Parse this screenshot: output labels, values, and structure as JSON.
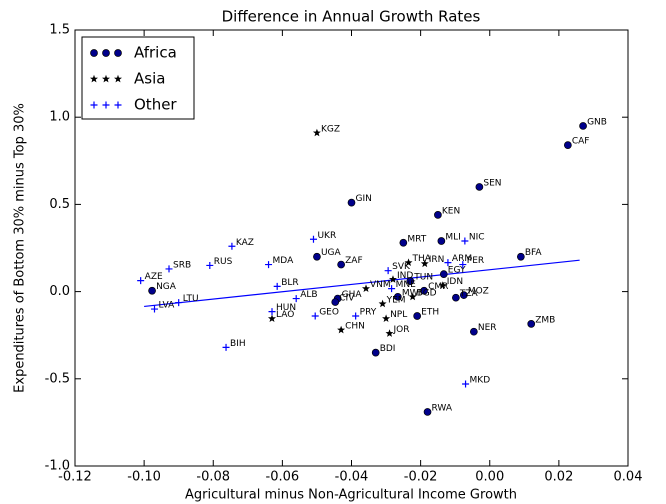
{
  "chart_data": {
    "type": "scatter",
    "title": "Difference in Annual Growth Rates",
    "x_label": "Agricultural minus Non-Agricultural Income Growth",
    "y_label": "Expenditures of Bottom 30% minus Top 30%",
    "xlim": [
      -0.12,
      0.04
    ],
    "ylim": [
      -1.0,
      1.5
    ],
    "xticks": [
      -0.12,
      {
        "value": -0.1,
        "label": "-0.10"
      },
      -0.08,
      -0.06,
      -0.04,
      -0.02,
      {
        "value": 0,
        "label": "0.00"
      },
      0.02,
      0.04
    ],
    "yticks": [
      {
        "value": -1.0,
        "label": "-1.0"
      },
      -0.5,
      {
        "value": 0,
        "label": "0.0"
      },
      0.5,
      {
        "value": 1.0,
        "label": "1.0"
      },
      1.5
    ],
    "legend": "upper left",
    "series": [
      {
        "name": "Africa",
        "color": "#00008b",
        "marker": "circle",
        "labels": [
          "GNB",
          "CAF",
          "SEN",
          "GIN",
          "KEN",
          "MRT",
          "MLI",
          "UGA",
          "ZAF",
          "BFA",
          "TUN",
          "CMR",
          "MOZ",
          "NGA",
          "ETH",
          "NER",
          "ZMB",
          "BDI",
          "RWA",
          "GHA",
          "CIV",
          "MWI",
          "TZA",
          "EGY"
        ],
        "x": [
          0.027,
          0.0226,
          -0.003,
          -0.04,
          -0.015,
          -0.025,
          -0.014,
          -0.05,
          -0.043,
          0.009,
          -0.023,
          -0.019,
          -0.0075,
          -0.0977,
          -0.021,
          -0.0046,
          0.012,
          -0.033,
          -0.018,
          -0.044,
          -0.0447,
          -0.0266,
          -0.0098,
          -0.0133
        ],
        "y": [
          0.95,
          0.84,
          0.6,
          0.51,
          0.44,
          0.28,
          0.29,
          0.2,
          0.155,
          0.2,
          0.06,
          0.005,
          -0.02,
          0.005,
          -0.14,
          -0.23,
          -0.185,
          -0.35,
          -0.69,
          -0.04,
          -0.06,
          -0.03,
          -0.035,
          0.1
        ]
      },
      {
        "name": "Asia",
        "color": "#000000",
        "marker": "star",
        "labels": [
          "KGZ",
          "THA",
          "IRN",
          "IND",
          "VNM",
          "JOR",
          "LAO",
          "CHN",
          "NPL",
          "YEM",
          "IDN",
          "BGD"
        ],
        "x": [
          -0.05,
          -0.0235,
          -0.0188,
          -0.028,
          -0.0358,
          -0.029,
          -0.063,
          -0.043,
          -0.03,
          -0.031,
          -0.0136,
          -0.0223
        ],
        "y": [
          0.91,
          0.166,
          0.16,
          0.07,
          0.017,
          -0.24,
          -0.155,
          -0.22,
          -0.155,
          -0.07,
          0.035,
          -0.03
        ]
      },
      {
        "name": "Other",
        "color": "#0000ff",
        "marker": "plus",
        "labels": [
          "KAZ",
          "UKR",
          "SRB",
          "RUS",
          "MDA",
          "AZE",
          "LVA",
          "LTU",
          "BLR",
          "ALB",
          "HUN",
          "GEO",
          "BIH",
          "SVK",
          "NIC",
          "ARM",
          "PER",
          "MNE",
          "MKD",
          "PRY"
        ],
        "x": [
          -0.0746,
          -0.051,
          -0.0928,
          -0.081,
          -0.064,
          -0.101,
          -0.097,
          -0.09,
          -0.0615,
          -0.056,
          -0.063,
          -0.0505,
          -0.0763,
          -0.0294,
          -0.0072,
          -0.0121,
          -0.0078,
          -0.0284,
          -0.007,
          -0.0388
        ],
        "y": [
          0.26,
          0.3,
          0.13,
          0.15,
          0.155,
          0.063,
          -0.1,
          -0.063,
          0.03,
          -0.04,
          -0.115,
          -0.14,
          -0.32,
          0.12,
          0.29,
          0.166,
          0.155,
          0.017,
          -0.53,
          -0.14
        ]
      }
    ],
    "fit": {
      "color": "#0000ff",
      "x": [
        -0.1,
        0.026
      ],
      "y": [
        -0.085,
        0.18
      ]
    }
  }
}
